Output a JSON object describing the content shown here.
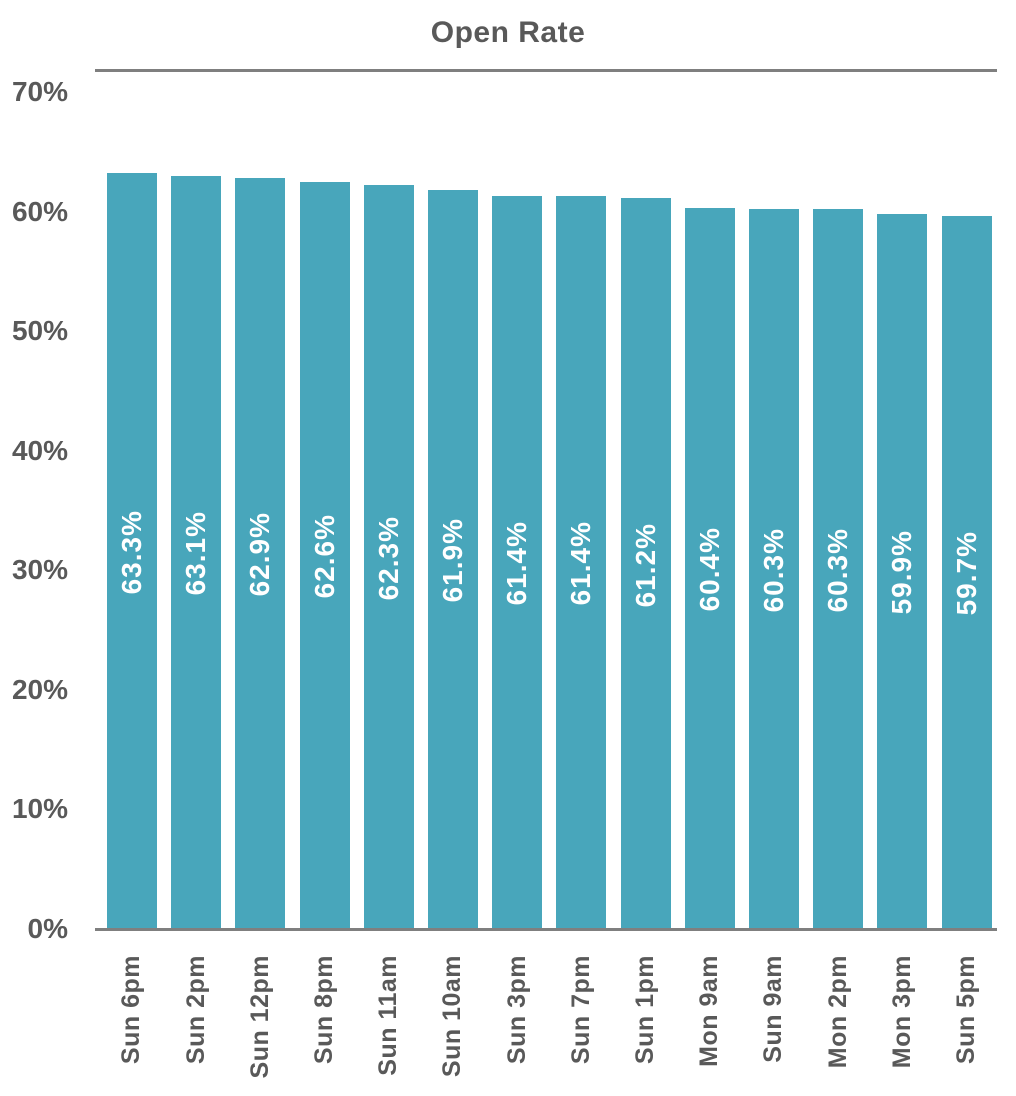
{
  "chart_data": {
    "type": "bar",
    "title": "Open Rate",
    "xlabel": "",
    "ylabel": "",
    "ylim": [
      0,
      70
    ],
    "grid": false,
    "legend": null,
    "yticks": [
      "70%",
      "60%",
      "50%",
      "40%",
      "30%",
      "20%",
      "10%",
      "0%"
    ],
    "categories": [
      "Sun 6pm",
      "Sun 2pm",
      "Sun 12pm",
      "Sun 8pm",
      "Sun 11am",
      "Sun 10am",
      "Sun 3pm",
      "Sun 7pm",
      "Sun 1pm",
      "Mon 9am",
      "Sun 9am",
      "Mon 2pm",
      "Mon 3pm",
      "Sun 5pm"
    ],
    "values": [
      63.3,
      63.1,
      62.9,
      62.6,
      62.3,
      61.9,
      61.4,
      61.4,
      61.2,
      60.4,
      60.3,
      60.3,
      59.9,
      59.7
    ],
    "value_labels": [
      "63.3%",
      "63.1%",
      "62.9%",
      "62.6%",
      "62.3%",
      "61.9%",
      "61.4%",
      "61.4%",
      "61.2%",
      "60.4%",
      "60.3%",
      "60.3%",
      "59.9%",
      "59.7%"
    ]
  },
  "colors": {
    "bar": "#48a6bb",
    "text": "#595959",
    "axis_line": "#7f7f7f",
    "value_label": "#ffffff",
    "background": "#ffffff"
  }
}
